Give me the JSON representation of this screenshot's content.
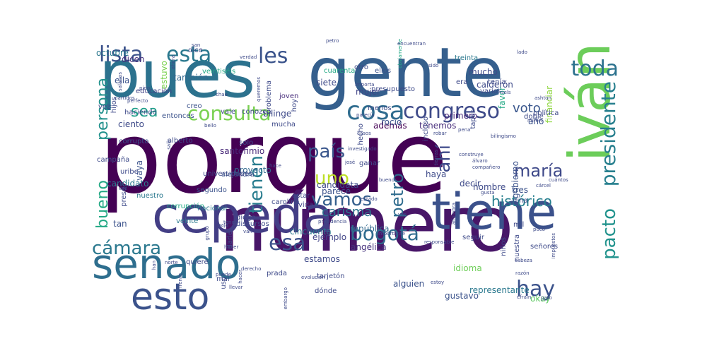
{
  "word_cloud": {
    "words": [
      {
        "text": "porque",
        "color": "#440154"
      },
      {
        "text": "número",
        "color": "#481668"
      },
      {
        "text": "gente",
        "color": "#355f8d"
      },
      {
        "text": "pues",
        "color": "#2c728e"
      },
      {
        "text": "iván",
        "color": "#6ccd5a"
      },
      {
        "text": "tiene",
        "color": "#3b518b"
      },
      {
        "text": "cepeda",
        "color": "#433e85"
      },
      {
        "text": "senado",
        "color": "#2e6e8e"
      },
      {
        "text": "esto",
        "color": "#3b528b"
      },
      {
        "text": "cosa",
        "color": "#2f6c8e"
      },
      {
        "text": "congreso",
        "color": "#3e4a89"
      },
      {
        "text": "consulta",
        "color": "#7ad151"
      },
      {
        "text": "lista",
        "color": "#3b528b"
      },
      {
        "text": "esta",
        "color": "#2a788e"
      },
      {
        "text": "les",
        "color": "#3a538b"
      },
      {
        "text": "toda",
        "color": "#2c728e"
      },
      {
        "text": "presidente",
        "color": "#277f8e"
      },
      {
        "text": "pacto",
        "color": "#20928c"
      },
      {
        "text": "hay",
        "color": "#3b528b"
      },
      {
        "text": "bogotá",
        "color": "#2f6c8e"
      },
      {
        "text": "cámara",
        "color": "#2a788e"
      },
      {
        "text": "esa",
        "color": "#3b528b"
      },
      {
        "text": "vamos",
        "color": "#355f8d"
      },
      {
        "text": "uno",
        "color": "#bddf26"
      },
      {
        "text": "país",
        "color": "#39568c"
      },
      {
        "text": "ahí",
        "color": "#3e4a89"
      },
      {
        "text": "tienen",
        "color": "#287c8e"
      },
      {
        "text": "petro",
        "color": "#2f6c8e"
      },
      {
        "text": "maría",
        "color": "#3e4989"
      },
      {
        "text": "persona",
        "color": "#21918c"
      },
      {
        "text": "sea",
        "color": "#1f9e89"
      },
      {
        "text": "bueno",
        "color": "#22a884"
      },
      {
        "text": "voto",
        "color": "#39568c"
      },
      {
        "text": "carisma",
        "color": "#2c728e"
      },
      {
        "text": "histórico",
        "color": "#277f8e"
      },
      {
        "text": "representante",
        "color": "#2a788e"
      },
      {
        "text": "república",
        "color": "#31688e"
      },
      {
        "text": "tan",
        "color": "#3b528b"
      },
      {
        "text": "tenemos",
        "color": "#472d7b"
      },
      {
        "text": "okay",
        "color": "#5ec962"
      },
      {
        "text": "también",
        "color": "#31688e"
      },
      {
        "text": "calderón",
        "color": "#3e4a89"
      },
      {
        "text": "proyecto",
        "color": "#31688e"
      },
      {
        "text": "candidato",
        "color": "#2a788e"
      },
      {
        "text": "cincuenta",
        "color": "#2a788e"
      },
      {
        "text": "gobierno",
        "color": "#3b528b"
      },
      {
        "text": "favor",
        "color": "#22a884"
      },
      {
        "text": "primero",
        "color": "#482878"
      },
      {
        "text": "financiar",
        "color": "#90d743"
      },
      {
        "text": "año",
        "color": "#3b528b"
      },
      {
        "text": "dicen",
        "color": "#46327e"
      },
      {
        "text": "idioma",
        "color": "#6ece58"
      },
      {
        "text": "siete",
        "color": "#3e4a89"
      },
      {
        "text": "además",
        "color": "#440154"
      },
      {
        "text": "angélica",
        "color": "#46327e"
      },
      {
        "text": "gustavo",
        "color": "#3b528b"
      },
      {
        "text": "rocío",
        "color": "#3b528b"
      },
      {
        "text": "mujer",
        "color": "#414487"
      },
      {
        "text": "octubre",
        "color": "#2a788e"
      },
      {
        "text": "bilinge",
        "color": "#3e4a89"
      },
      {
        "text": "ciento",
        "color": "#3e4a89"
      },
      {
        "text": "parece",
        "color": "#3b528b"
      },
      {
        "text": "vaya",
        "color": "#3b528b"
      },
      {
        "text": "santofimio",
        "color": "#482878"
      },
      {
        "text": "estamos",
        "color": "#3e4a89"
      },
      {
        "text": "ella",
        "color": "#3b528b"
      },
      {
        "text": "ejemplo",
        "color": "#414487"
      },
      {
        "text": "estuvo",
        "color": "#7ad151"
      },
      {
        "text": "candidata",
        "color": "#3e4a89"
      },
      {
        "text": "tres",
        "color": "#3b528b"
      },
      {
        "text": "hombre",
        "color": "#3e4a89"
      },
      {
        "text": "alguien",
        "color": "#3b528b"
      },
      {
        "text": "mucho",
        "color": "#3e4a89"
      },
      {
        "text": "haya",
        "color": "#3e4a89"
      },
      {
        "text": "decir",
        "color": "#3e4a89"
      },
      {
        "text": "vida",
        "color": "#414487"
      },
      {
        "text": "educación",
        "color": "#414487"
      },
      {
        "text": "corrupción",
        "color": "#22a884"
      },
      {
        "text": "corrupto",
        "color": "#3b528b"
      },
      {
        "text": "quiere",
        "color": "#3e4a89"
      },
      {
        "text": "campaña",
        "color": "#3e4a89"
      },
      {
        "text": "gina",
        "color": "#3e4a89"
      },
      {
        "text": "darle",
        "color": "#3e4a89"
      },
      {
        "text": "menos",
        "color": "#3e4a89"
      },
      {
        "text": "segundo",
        "color": "#3b528b"
      },
      {
        "text": "ellos",
        "color": "#3b528b"
      },
      {
        "text": "entonces",
        "color": "#3b528b"
      },
      {
        "text": "alejandra",
        "color": "#3b528b"
      },
      {
        "text": "joven",
        "color": "#472d7b"
      },
      {
        "text": "señores",
        "color": "#3e4a89"
      },
      {
        "text": "diego",
        "color": "#3e4a89"
      },
      {
        "text": "doble",
        "color": "#3e4a89"
      },
      {
        "text": "dice",
        "color": "#3e4a89"
      },
      {
        "text": "hecho",
        "color": "#3e4a89"
      },
      {
        "text": "estar",
        "color": "#3e4a89"
      },
      {
        "text": "creo",
        "color": "#3b528b"
      },
      {
        "text": "discursos",
        "color": "#3e4a89"
      },
      {
        "text": "alberto",
        "color": "#3e4a89"
      },
      {
        "text": "veinte",
        "color": "#2a788e"
      },
      {
        "text": "treinta",
        "color": "#2a788e"
      },
      {
        "text": "prada",
        "color": "#3e4a89"
      },
      {
        "text": "carolina",
        "color": "#3e4a89"
      },
      {
        "text": "nacional",
        "color": "#2a788e"
      },
      {
        "text": "solo",
        "color": "#3e4a89"
      },
      {
        "text": "haciendo",
        "color": "#3e4a89"
      },
      {
        "text": "mil",
        "color": "#3e4a89"
      },
      {
        "text": "veintiséis",
        "color": "#22a884"
      },
      {
        "text": "tarjetón",
        "color": "#3e4a89"
      },
      {
        "text": "uribe",
        "color": "#3e4a89"
      },
      {
        "text": "mucha",
        "color": "#3e4a89"
      },
      {
        "text": "niños",
        "color": "#3e4a89"
      },
      {
        "text": "política",
        "color": "#3e4a89"
      },
      {
        "text": "vez",
        "color": "#3e4a89"
      },
      {
        "text": "cuarenta",
        "color": "#22a884"
      },
      {
        "text": "tapar",
        "color": "#3e4a89"
      },
      {
        "text": "problema",
        "color": "#3e4a89"
      },
      {
        "text": "presupuesto",
        "color": "#3e4a89"
      },
      {
        "text": "nuestra",
        "color": "#3e4a89"
      },
      {
        "text": "incluso",
        "color": "#3e4a89"
      },
      {
        "text": "hoy",
        "color": "#3e4a89"
      },
      {
        "text": "dónde",
        "color": "#3e4a89"
      },
      {
        "text": "uso",
        "color": "#3e4a89"
      },
      {
        "text": "universidades",
        "color": "#3e4a89"
      },
      {
        "text": "era",
        "color": "#3e4a89"
      },
      {
        "text": "conozco",
        "color": "#3e4a89"
      },
      {
        "text": "vale",
        "color": "#3e4a89"
      },
      {
        "text": "preso",
        "color": "#3e4a89"
      },
      {
        "text": "nuestro",
        "color": "#2a788e"
      },
      {
        "text": "seguir",
        "color": "#3e4a89"
      },
      {
        "text": "ganar",
        "color": "#3e4a89"
      },
      {
        "text": "tenía",
        "color": "#3e4a89"
      },
      {
        "text": "hijos",
        "color": "#3e4a89"
      },
      {
        "text": "otro",
        "color": "#3e4a89"
      },
      {
        "text": "varios",
        "color": "#3e4a89"
      },
      {
        "text": "mal",
        "color": "#3e4a89"
      },
      {
        "text": "tener",
        "color": "#3e4a89"
      },
      {
        "text": "llevar",
        "color": "#3e4a89"
      },
      {
        "text": "sido",
        "color": "#3e4a89"
      },
      {
        "text": "cuántos",
        "color": "#3e4a89"
      },
      {
        "text": "presidencia",
        "color": "#3e4a89"
      },
      {
        "text": "obviamente",
        "color": "#22a884"
      },
      {
        "text": "cabeza",
        "color": "#3e4a89"
      },
      {
        "text": "ver",
        "color": "#3e4a89"
      },
      {
        "text": "derecho",
        "color": "#3e4a89"
      },
      {
        "text": "hacer",
        "color": "#3e4a89"
      },
      {
        "text": "salarios",
        "color": "#3e4a89"
      },
      {
        "text": "gato",
        "color": "#3e4a89"
      },
      {
        "text": "evolución",
        "color": "#3e4a89"
      },
      {
        "text": "miren",
        "color": "#3e4a89"
      },
      {
        "text": "gusta",
        "color": "#3e4a89"
      },
      {
        "text": "importa",
        "color": "#3e4a89"
      },
      {
        "text": "josé",
        "color": "#3e4a89"
      },
      {
        "text": "frente",
        "color": "#3e4a89"
      },
      {
        "text": "razón",
        "color": "#3e4a89"
      },
      {
        "text": "han",
        "color": "#3e4a89"
      },
      {
        "text": "chao",
        "color": "#3e4a89"
      },
      {
        "text": "robar",
        "color": "#3e4a89"
      },
      {
        "text": "poco",
        "color": "#3e4a89"
      },
      {
        "text": "van",
        "color": "#3e4a89"
      },
      {
        "text": "haber",
        "color": "#3e4a89"
      },
      {
        "text": "bello",
        "color": "#3e4a89"
      },
      {
        "text": "importante",
        "color": "#3e4a89"
      },
      {
        "text": "álvaro",
        "color": "#3e4a89"
      },
      {
        "text": "puede",
        "color": "#3e4a89"
      },
      {
        "text": "hace",
        "color": "#3e4a89"
      },
      {
        "text": "estado",
        "color": "#3e4a89"
      },
      {
        "text": "baja",
        "color": "#3e4a89"
      },
      {
        "text": "sels",
        "color": "#3e4a89"
      },
      {
        "text": "compañero",
        "color": "#3e4a89"
      },
      {
        "text": "petro",
        "color": "#3e4a89"
      },
      {
        "text": "queremos",
        "color": "#3e4a89"
      },
      {
        "text": "pena",
        "color": "#3e4a89"
      },
      {
        "text": "san",
        "color": "#3e4a89"
      },
      {
        "text": "ese",
        "color": "#3e4a89"
      },
      {
        "text": "tierras",
        "color": "#3e4a89"
      },
      {
        "text": "encuentran",
        "color": "#3e4a89"
      },
      {
        "text": "grupo",
        "color": "#3e4a89"
      },
      {
        "text": "efraín",
        "color": "#3e4a89"
      },
      {
        "text": "perfecto",
        "color": "#3e4a89"
      },
      {
        "text": "norte",
        "color": "#3e4a89"
      },
      {
        "text": "parecía",
        "color": "#3e4a89"
      },
      {
        "text": "estoy",
        "color": "#3e4a89"
      },
      {
        "text": "partidos",
        "color": "#3e4a89"
      },
      {
        "text": "cárcel",
        "color": "#3e4a89"
      },
      {
        "text": "bilingismo",
        "color": "#3e4a89"
      },
      {
        "text": "ahora",
        "color": "#3e4a89"
      },
      {
        "text": "verdad",
        "color": "#3e4a89"
      },
      {
        "text": "responsable",
        "color": "#3e4a89"
      },
      {
        "text": "alfombra",
        "color": "#3e4a89"
      },
      {
        "text": "lado",
        "color": "#3e4a89"
      },
      {
        "text": "investigado",
        "color": "#3e4a89"
      },
      {
        "text": "pido",
        "color": "#3e4a89"
      },
      {
        "text": "impuestos",
        "color": "#3e4a89"
      },
      {
        "text": "buenos",
        "color": "#3e4a89"
      },
      {
        "text": "embargo",
        "color": "#3e4a89"
      },
      {
        "text": "construye",
        "color": "#3e4a89"
      },
      {
        "text": "salir",
        "color": "#3e4a89"
      },
      {
        "text": "ashton",
        "color": "#3e4a89"
      },
      {
        "text": "casos",
        "color": "#3e4a89"
      }
    ]
  }
}
